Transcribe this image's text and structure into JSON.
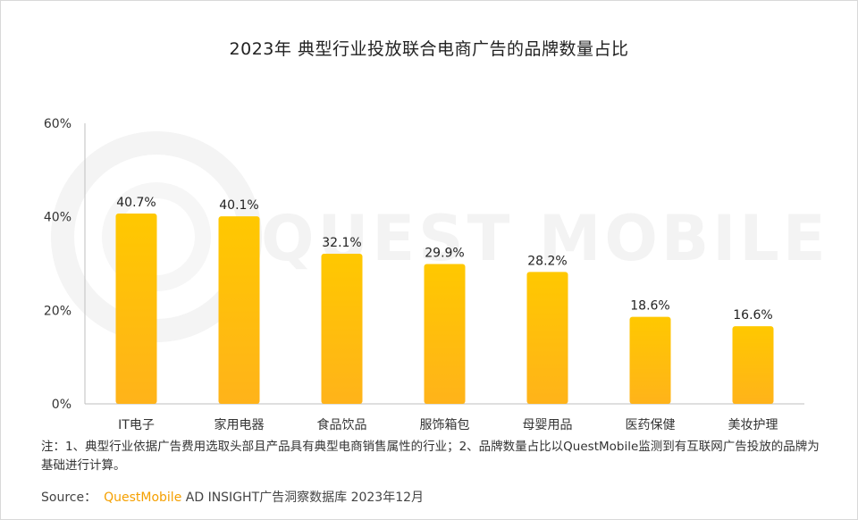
{
  "title": "2023年 典型行业投放联合电商广告的品牌数量占比",
  "watermark": "QUEST MOBILE",
  "chart_data": {
    "type": "bar",
    "title": "2023年 典型行业投放联合电商广告的品牌数量占比",
    "categories": [
      "IT电子",
      "家用电器",
      "食品饮品",
      "服饰箱包",
      "母婴用品",
      "医药保健",
      "美妆护理"
    ],
    "values": [
      40.7,
      40.1,
      32.1,
      29.9,
      28.2,
      18.6,
      16.6
    ],
    "value_labels": [
      "40.7%",
      "40.1%",
      "32.1%",
      "29.9%",
      "28.2%",
      "18.6%",
      "16.6%"
    ],
    "yticks": [
      "0%",
      "20%",
      "40%",
      "60%"
    ],
    "ytick_values": [
      0,
      20,
      40,
      60
    ],
    "ylim": [
      0,
      60
    ],
    "xlabel": "",
    "ylabel": "",
    "grid": false,
    "legend": "none",
    "bar_color_top": "#ffc800",
    "bar_color_bottom": "#ffb31a"
  },
  "note": "注：1、典型行业依据广告费用选取头部且产品具有典型电商销售属性的行业；2、品牌数量占比以QuestMobile监测到有互联网广告投放的品牌为基础进行计算。",
  "source": {
    "label": "Source：",
    "brand": "QuestMobile",
    "text": " AD INSIGHT广告洞察数据库 2023年12月"
  }
}
